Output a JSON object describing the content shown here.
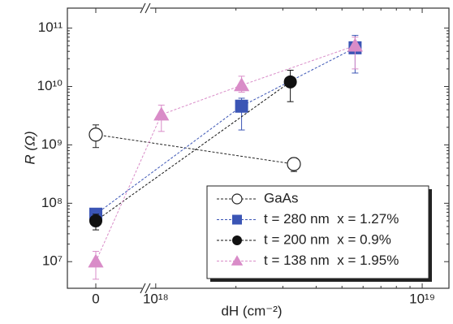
{
  "chart_data": {
    "type": "scatter",
    "ylabel": "R (Ω)",
    "xlabel": "dH (cm⁻²)",
    "yscale": "log",
    "xscale": "log",
    "xbreak": true,
    "ylim": [
      3500000,
      220000000000
    ],
    "yticks": [
      {
        "value": 10000000,
        "label": "10⁷"
      },
      {
        "value": 100000000,
        "label": "10⁸"
      },
      {
        "value": 1000000000,
        "label": "10⁹"
      },
      {
        "value": 10000000000,
        "label": "10¹⁰"
      },
      {
        "value": 100000000000,
        "label": "10¹¹"
      }
    ],
    "xlim": [
      940000000000000000,
      12600000000000000000
    ],
    "xticks": [
      0,
      {
        "value": 1000000000000000000,
        "label": "10¹⁸"
      },
      {
        "value": 10000000000000000000,
        "label": "10¹⁹"
      }
    ],
    "legend": "lower right",
    "series": [
      {
        "name": "GaAs",
        "color": "#222222",
        "marker": "circle-open",
        "x": [
          0,
          3300000000000000000
        ],
        "values": [
          1500000000,
          470000000
        ],
        "ylow": [
          900000000,
          350000000
        ],
        "yhigh": [
          2200000000,
          600000000
        ]
      },
      {
        "name": "t = 280 nm  x = 1.27%",
        "color": "#3b55b5",
        "marker": "square",
        "x": [
          0,
          2100000000000000000,
          5600000000000000000
        ],
        "values": [
          65000000,
          4600000000,
          46000000000
        ],
        "ylow": [
          40000000,
          1800000000,
          17000000000
        ],
        "yhigh": [
          80000000,
          6300000000,
          75000000000
        ]
      },
      {
        "name": "t = 200 nm  x = 0.9%",
        "color": "#111111",
        "marker": "circle",
        "x": [
          0,
          3200000000000000000
        ],
        "values": [
          50000000,
          12000000000
        ],
        "ylow": [
          35000000,
          5500000000
        ],
        "yhigh": [
          65000000,
          19000000000
        ]
      },
      {
        "name": "t = 138 nm  x = 1.95%",
        "color": "#d98cc8",
        "marker": "triangle",
        "x": [
          0,
          1050000000000000000,
          2100000000000000000,
          5600000000000000000
        ],
        "values": [
          10000000,
          3300000000,
          10500000000,
          50000000000
        ],
        "ylow": [
          5000000,
          1700000000,
          8000000000,
          20000000000
        ],
        "yhigh": [
          15000000,
          4800000000,
          15000000000,
          70000000000
        ]
      }
    ]
  }
}
